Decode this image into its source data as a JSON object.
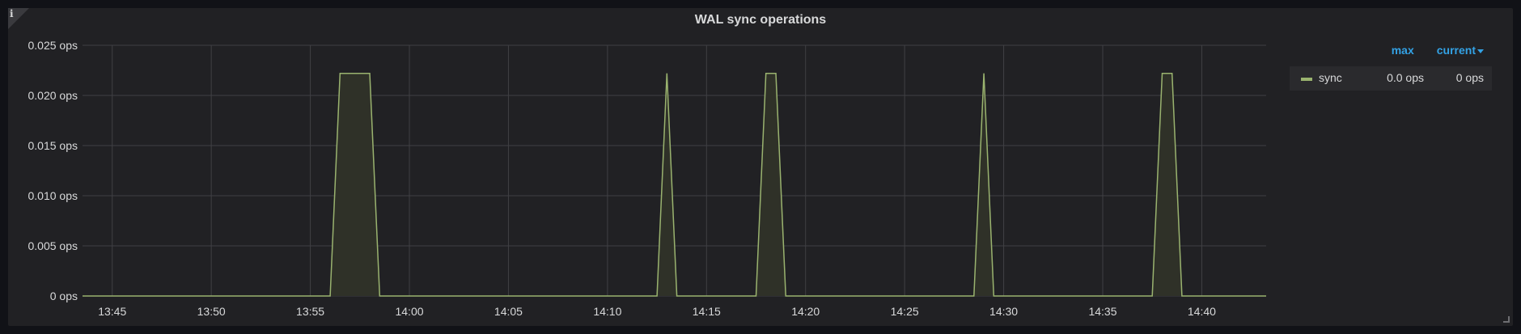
{
  "panel": {
    "title": "WAL sync operations",
    "info_icon": "info-icon",
    "info_glyph": "i"
  },
  "legend": {
    "columns": {
      "max": "max",
      "current": "current"
    },
    "sort_icon": "caret-down-icon",
    "series": [
      {
        "name": "sync",
        "max": "0.0 ops",
        "current": "0 ops",
        "color": "#9ab36f"
      }
    ]
  },
  "colors": {
    "panel_bg": "#212124",
    "grid": "#404044",
    "line": "#9ab36f",
    "fill": "#2f3128",
    "text": "#d8d9da",
    "legend_header": "#33a2e5"
  },
  "chart_data": {
    "type": "area",
    "title": "WAL sync operations",
    "xlabel": "",
    "ylabel": "",
    "x_range": [
      "13:43:30",
      "14:43:15"
    ],
    "ylim": [
      0,
      0.025
    ],
    "y_ticks": [
      {
        "value": 0,
        "label": "0 ops"
      },
      {
        "value": 0.005,
        "label": "0.005 ops"
      },
      {
        "value": 0.01,
        "label": "0.010 ops"
      },
      {
        "value": 0.015,
        "label": "0.015 ops"
      },
      {
        "value": 0.02,
        "label": "0.020 ops"
      },
      {
        "value": 0.025,
        "label": "0.025 ops"
      }
    ],
    "x_ticks": [
      "13:45",
      "13:50",
      "13:55",
      "14:00",
      "14:05",
      "14:10",
      "14:15",
      "14:20",
      "14:25",
      "14:30",
      "14:35",
      "14:40"
    ],
    "grid": true,
    "legend_position": "right",
    "series": [
      {
        "name": "sync",
        "color": "#9ab36f",
        "points": [
          [
            "13:43:30",
            0
          ],
          [
            "13:56:00",
            0
          ],
          [
            "13:56:30",
            0.0222
          ],
          [
            "13:58:00",
            0.0222
          ],
          [
            "13:58:30",
            0
          ],
          [
            "14:12:30",
            0
          ],
          [
            "14:13:00",
            0.0222
          ],
          [
            "14:13:30",
            0
          ],
          [
            "14:17:30",
            0
          ],
          [
            "14:18:00",
            0.0222
          ],
          [
            "14:18:30",
            0.0222
          ],
          [
            "14:19:00",
            0
          ],
          [
            "14:28:30",
            0
          ],
          [
            "14:29:00",
            0.0222
          ],
          [
            "14:29:30",
            0
          ],
          [
            "14:37:30",
            0
          ],
          [
            "14:38:00",
            0.0222
          ],
          [
            "14:38:30",
            0.0222
          ],
          [
            "14:39:00",
            0
          ],
          [
            "14:43:15",
            0
          ]
        ]
      }
    ]
  }
}
